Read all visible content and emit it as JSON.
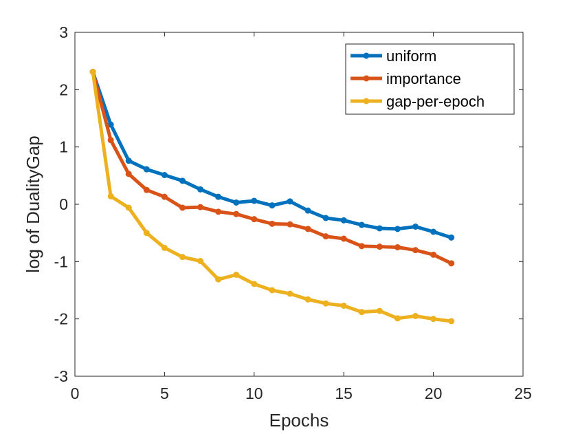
{
  "chart_data": {
    "type": "line",
    "title": "",
    "xlabel": "Epochs",
    "ylabel": "log of DualityGap",
    "xlim": [
      0,
      25
    ],
    "ylim": [
      -3,
      3
    ],
    "xticks": [
      0,
      5,
      10,
      15,
      20,
      25
    ],
    "yticks": [
      -3,
      -2,
      -1,
      0,
      1,
      2,
      3
    ],
    "xtick_labels": [
      "0",
      "5",
      "10",
      "15",
      "20",
      "25"
    ],
    "ytick_labels": [
      "-3",
      "-2",
      "-1",
      "0",
      "1",
      "2",
      "3"
    ],
    "grid": false,
    "legend_position": "top-right",
    "x": [
      1,
      2,
      3,
      4,
      5,
      6,
      7,
      8,
      9,
      10,
      11,
      12,
      13,
      14,
      15,
      16,
      17,
      18,
      19,
      20,
      21
    ],
    "series": [
      {
        "name": "uniform",
        "color": "#0072BD",
        "values": [
          2.31,
          1.39,
          0.76,
          0.61,
          0.51,
          0.41,
          0.26,
          0.13,
          0.03,
          0.06,
          -0.02,
          0.05,
          -0.11,
          -0.24,
          -0.28,
          -0.36,
          -0.42,
          -0.43,
          -0.39,
          -0.48,
          -0.58
        ]
      },
      {
        "name": "importance",
        "color": "#D95319",
        "values": [
          2.31,
          1.12,
          0.53,
          0.25,
          0.13,
          -0.06,
          -0.05,
          -0.13,
          -0.17,
          -0.26,
          -0.34,
          -0.35,
          -0.43,
          -0.56,
          -0.6,
          -0.73,
          -0.74,
          -0.75,
          -0.8,
          -0.88,
          -1.03
        ]
      },
      {
        "name": "gap-per-epoch",
        "color": "#EDB120",
        "values": [
          2.31,
          0.14,
          -0.06,
          -0.5,
          -0.76,
          -0.92,
          -0.99,
          -1.31,
          -1.23,
          -1.39,
          -1.5,
          -1.56,
          -1.66,
          -1.73,
          -1.77,
          -1.88,
          -1.86,
          -1.99,
          -1.95,
          -2.0,
          -2.04
        ]
      }
    ]
  }
}
